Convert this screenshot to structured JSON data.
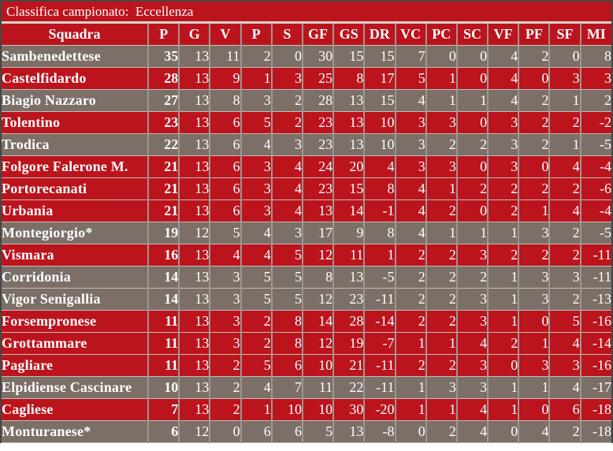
{
  "title": "Classifica campionato:  Eccellenza",
  "colors": {
    "red_row": "#bb141d",
    "gray_row": "#7b6f67",
    "text": "#ffffff",
    "row_divider": "#c7beb7",
    "outer_border": "#464646"
  },
  "table": {
    "columns": [
      "Squadra",
      "P",
      "G",
      "V",
      "P",
      "S",
      "GF",
      "GS",
      "DR",
      "VC",
      "PC",
      "SC",
      "VF",
      "PF",
      "SF",
      "MI"
    ],
    "rows": [
      {
        "team": "Sambenedettese",
        "variant": "gray",
        "values": [
          35,
          13,
          11,
          2,
          0,
          30,
          15,
          15,
          7,
          0,
          0,
          4,
          2,
          0,
          8
        ]
      },
      {
        "team": "Castelfidardo",
        "variant": "red",
        "values": [
          28,
          13,
          9,
          1,
          3,
          25,
          8,
          17,
          5,
          1,
          0,
          4,
          0,
          3,
          3
        ]
      },
      {
        "team": "Biagio Nazzaro",
        "variant": "gray",
        "values": [
          27,
          13,
          8,
          3,
          2,
          28,
          13,
          15,
          4,
          1,
          1,
          4,
          2,
          1,
          2
        ]
      },
      {
        "team": "Tolentino",
        "variant": "red",
        "values": [
          23,
          13,
          6,
          5,
          2,
          23,
          13,
          10,
          3,
          3,
          0,
          3,
          2,
          2,
          -2
        ]
      },
      {
        "team": "Trodica",
        "variant": "gray",
        "values": [
          22,
          13,
          6,
          4,
          3,
          23,
          13,
          10,
          3,
          2,
          2,
          3,
          2,
          1,
          -5
        ]
      },
      {
        "team": "Folgore Falerone M.",
        "variant": "red",
        "values": [
          21,
          13,
          6,
          3,
          4,
          24,
          20,
          4,
          3,
          3,
          0,
          3,
          0,
          4,
          -4
        ]
      },
      {
        "team": "Portorecanati",
        "variant": "red",
        "values": [
          21,
          13,
          6,
          3,
          4,
          23,
          15,
          8,
          4,
          1,
          2,
          2,
          2,
          2,
          -6
        ]
      },
      {
        "team": "Urbania",
        "variant": "red",
        "values": [
          21,
          13,
          6,
          3,
          4,
          13,
          14,
          -1,
          4,
          2,
          0,
          2,
          1,
          4,
          -4
        ]
      },
      {
        "team": "Montegiorgio*",
        "variant": "gray",
        "values": [
          19,
          12,
          5,
          4,
          3,
          17,
          9,
          8,
          4,
          1,
          1,
          1,
          3,
          2,
          -5
        ]
      },
      {
        "team": "Vismara",
        "variant": "red",
        "values": [
          16,
          13,
          4,
          4,
          5,
          12,
          11,
          1,
          2,
          2,
          3,
          2,
          2,
          2,
          -11
        ]
      },
      {
        "team": "Corridonia",
        "variant": "gray",
        "values": [
          14,
          13,
          3,
          5,
          5,
          8,
          13,
          -5,
          2,
          2,
          2,
          1,
          3,
          3,
          -11
        ]
      },
      {
        "team": "Vigor Senigallia",
        "variant": "gray",
        "values": [
          14,
          13,
          3,
          5,
          5,
          12,
          23,
          -11,
          2,
          2,
          3,
          1,
          3,
          2,
          -13
        ]
      },
      {
        "team": "Forsempronese",
        "variant": "red",
        "values": [
          11,
          13,
          3,
          2,
          8,
          14,
          28,
          -14,
          2,
          2,
          3,
          1,
          0,
          5,
          -16
        ]
      },
      {
        "team": "Grottammare",
        "variant": "red",
        "values": [
          11,
          13,
          3,
          2,
          8,
          12,
          19,
          -7,
          1,
          1,
          4,
          2,
          1,
          4,
          -14
        ]
      },
      {
        "team": "Pagliare",
        "variant": "red",
        "values": [
          11,
          13,
          2,
          5,
          6,
          10,
          21,
          -11,
          2,
          2,
          3,
          0,
          3,
          3,
          -16
        ]
      },
      {
        "team": "Elpidiense Cascinare",
        "variant": "gray",
        "values": [
          10,
          13,
          2,
          4,
          7,
          11,
          22,
          -11,
          1,
          3,
          3,
          1,
          1,
          4,
          -17
        ]
      },
      {
        "team": "Cagliese",
        "variant": "red",
        "values": [
          7,
          13,
          2,
          1,
          10,
          10,
          30,
          -20,
          1,
          1,
          4,
          1,
          0,
          6,
          -18
        ]
      },
      {
        "team": "Monturanese*",
        "variant": "gray",
        "values": [
          6,
          12,
          0,
          6,
          6,
          5,
          13,
          -8,
          0,
          2,
          4,
          0,
          4,
          2,
          -18
        ]
      }
    ]
  }
}
